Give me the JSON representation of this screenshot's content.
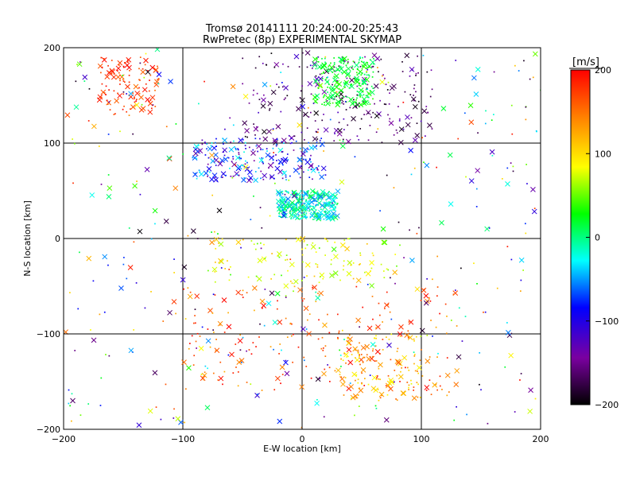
{
  "chart_data": {
    "type": "scatter",
    "title": "Tromsø 20141111 20:24:00-20:25:43",
    "subtitle": "RwPretec (8p) EXPERIMENTAL SKYMAP",
    "xlabel": "E-W location [km]",
    "ylabel": "N-S location [km]",
    "xlim": [
      -200,
      200
    ],
    "ylim": [
      -200,
      200
    ],
    "x_ticks": [
      -200,
      -100,
      0,
      100,
      200
    ],
    "y_ticks": [
      -200,
      -100,
      0,
      100,
      200
    ],
    "grid": true,
    "marker_types": [
      "dot",
      "cross"
    ],
    "colorbar": {
      "label": "[m/s]",
      "range": [
        -200,
        200
      ],
      "ticks": [
        -200,
        -100,
        0,
        100,
        200
      ],
      "colormap": "black-purple-blue-cyan-green-yellow-orange-red",
      "stops": [
        "#000000",
        "#7a00a0",
        "#0000ff",
        "#00ffff",
        "#00ff00",
        "#ffff00",
        "#ff8000",
        "#ff0000"
      ]
    },
    "clusters": [
      {
        "region": "north-upper",
        "x": [
          -50,
          110
        ],
        "y": [
          100,
          195
        ],
        "velocity": [
          -200,
          -120
        ],
        "density": "high"
      },
      {
        "region": "north-upper-center",
        "x": [
          10,
          60
        ],
        "y": [
          140,
          190
        ],
        "velocity": [
          0,
          40
        ],
        "density": "high"
      },
      {
        "region": "north-band",
        "x": [
          -90,
          20
        ],
        "y": [
          60,
          105
        ],
        "velocity": [
          -150,
          -20
        ],
        "density": "high"
      },
      {
        "region": "center",
        "x": [
          -20,
          30
        ],
        "y": [
          20,
          50
        ],
        "velocity": [
          -60,
          20
        ],
        "density": "very high"
      },
      {
        "region": "upper-left",
        "x": [
          -170,
          -120
        ],
        "y": [
          130,
          190
        ],
        "velocity": [
          150,
          200
        ],
        "density": "medium"
      },
      {
        "region": "mid-south-band",
        "x": [
          -80,
          80
        ],
        "y": [
          -50,
          0
        ],
        "velocity": [
          40,
          120
        ],
        "density": "medium"
      },
      {
        "region": "south",
        "x": [
          -100,
          130
        ],
        "y": [
          -160,
          -50
        ],
        "velocity": [
          120,
          200
        ],
        "density": "high"
      },
      {
        "region": "south-east",
        "x": [
          30,
          100
        ],
        "y": [
          -170,
          -100
        ],
        "velocity": [
          80,
          160
        ],
        "density": "medium"
      },
      {
        "region": "scatter-background",
        "x": [
          -200,
          200
        ],
        "y": [
          -200,
          200
        ],
        "velocity": [
          -200,
          200
        ],
        "density": "low"
      }
    ]
  }
}
